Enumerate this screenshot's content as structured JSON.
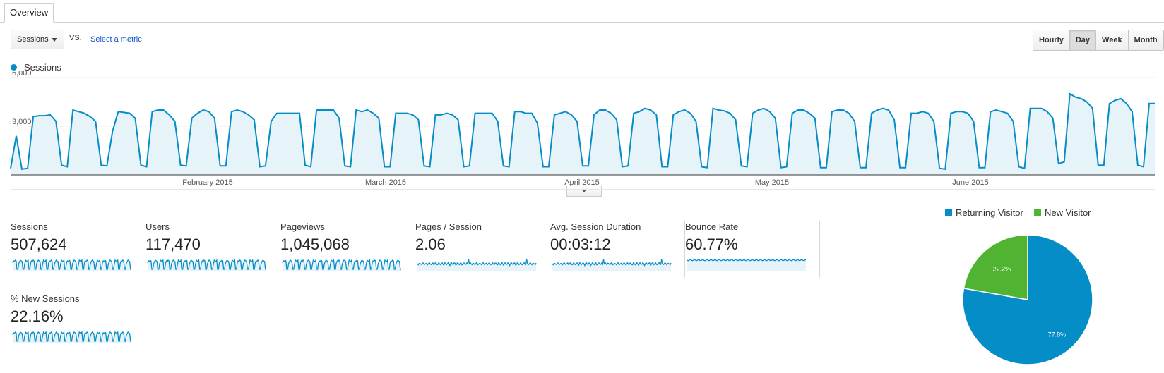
{
  "tabs": {
    "overview": "Overview"
  },
  "controls": {
    "metric": "Sessions",
    "vs": "VS.",
    "select_metric": "Select a metric",
    "granularity": [
      "Hourly",
      "Day",
      "Week",
      "Month"
    ],
    "active_granularity": "Day"
  },
  "colors": {
    "sessions_line": "#058dc7",
    "sessions_fill": "#e6f4fa",
    "returning": "#058dc7",
    "new": "#50b432"
  },
  "chart_data": [
    {
      "type": "area",
      "legend": "Sessions",
      "ylim": [
        0,
        6000
      ],
      "y_ticks": [
        "6,000",
        "3,000"
      ],
      "x_labels": [
        "February 2015",
        "March 2015",
        "April 2015",
        "May 2015",
        "June 2015"
      ],
      "series": [
        {
          "name": "Sessions",
          "values": [
            400,
            2400,
            350,
            400,
            3600,
            3650,
            3650,
            3700,
            3300,
            600,
            500,
            4000,
            3900,
            3800,
            3600,
            3300,
            600,
            550,
            2700,
            3900,
            3850,
            3800,
            3500,
            600,
            500,
            3900,
            4000,
            4000,
            3700,
            3300,
            600,
            550,
            3500,
            3800,
            4000,
            3900,
            3500,
            550,
            550,
            3900,
            4000,
            3900,
            3700,
            3400,
            500,
            550,
            3300,
            3800,
            3800,
            3800,
            3800,
            3800,
            600,
            500,
            4000,
            4000,
            4000,
            4000,
            3500,
            550,
            500,
            4000,
            3900,
            4000,
            3800,
            3500,
            500,
            500,
            3800,
            3800,
            3800,
            3700,
            3400,
            550,
            500,
            3700,
            3700,
            3800,
            3700,
            3400,
            500,
            550,
            3800,
            3800,
            3800,
            3800,
            3300,
            550,
            500,
            3900,
            3900,
            3800,
            3800,
            3200,
            500,
            500,
            3700,
            3800,
            3900,
            3700,
            3300,
            550,
            550,
            3700,
            4000,
            4000,
            3800,
            3400,
            500,
            550,
            3800,
            3900,
            4100,
            4000,
            3700,
            500,
            500,
            3700,
            3900,
            4000,
            3800,
            3300,
            500,
            450,
            4100,
            4000,
            3950,
            3800,
            3400,
            550,
            500,
            3800,
            4000,
            4100,
            3900,
            3500,
            450,
            500,
            3800,
            4000,
            4000,
            3800,
            3500,
            450,
            450,
            3900,
            4000,
            4000,
            3800,
            3300,
            450,
            450,
            3800,
            4000,
            4100,
            4000,
            3400,
            450,
            450,
            3800,
            3800,
            3900,
            3800,
            3300,
            400,
            350,
            3800,
            3900,
            3900,
            3800,
            3300,
            450,
            450,
            3900,
            4000,
            3900,
            3800,
            3300,
            500,
            400,
            4100,
            4100,
            4100,
            3900,
            3500,
            700,
            800,
            5000,
            4800,
            4700,
            4500,
            4100,
            600,
            600,
            4400,
            4600,
            4700,
            4400,
            3900,
            600,
            500,
            4400,
            4400
          ]
        }
      ]
    },
    {
      "type": "pie",
      "series": [
        {
          "name": "Returning Visitor",
          "value": 77.8,
          "label": "77.8%"
        },
        {
          "name": "New Visitor",
          "value": 22.2,
          "label": "22.2%"
        }
      ]
    }
  ],
  "scorecards": [
    {
      "label": "Sessions",
      "value": "507,624",
      "spark": "weekly"
    },
    {
      "label": "Users",
      "value": "117,470",
      "spark": "weekly"
    },
    {
      "label": "Pageviews",
      "value": "1,045,068",
      "spark": "weekly"
    },
    {
      "label": "Pages / Session",
      "value": "2.06",
      "spark": "flat"
    },
    {
      "label": "Avg. Session Duration",
      "value": "00:03:12",
      "spark": "flat"
    },
    {
      "label": "Bounce Rate",
      "value": "60.77%",
      "spark": "high"
    },
    {
      "label": "% New Sessions",
      "value": "22.16%",
      "spark": "weekly"
    }
  ]
}
